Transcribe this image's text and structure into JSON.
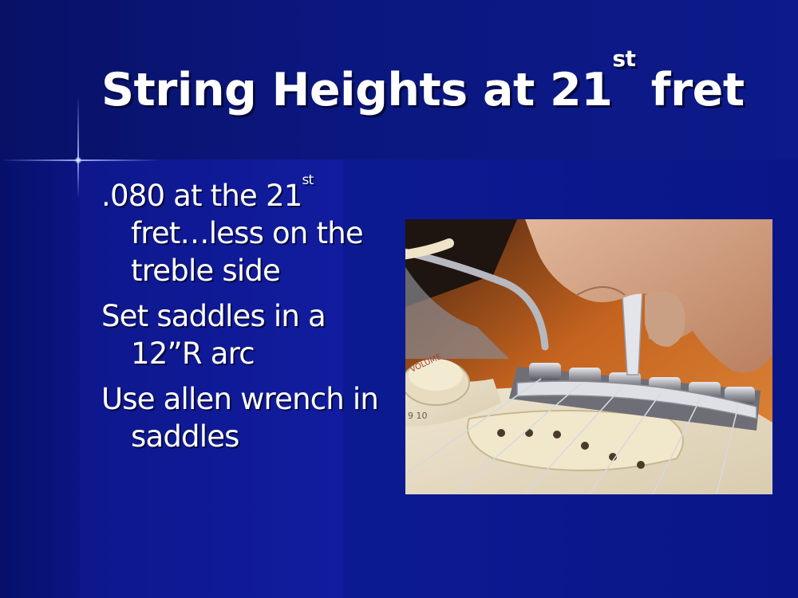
{
  "slide": {
    "title": {
      "main": "String Heights at 21",
      "sup": "st",
      "tail": " fret"
    },
    "bullets": [
      {
        "pre": ".080 at the 21",
        "sup": "st",
        "post": " fret…less on the treble side"
      },
      {
        "pre": "Set saddles in a 12”R arc",
        "sup": "",
        "post": ""
      },
      {
        "pre": "Use allen wrench in saddles",
        "sup": "",
        "post": ""
      }
    ],
    "photo": {
      "knob_label": "VOLUME",
      "knob_numbers": "9  10"
    }
  },
  "colors": {
    "background": "#0a1585",
    "text": "#ffffff",
    "guitar_body": "#d06a2a",
    "pickguard": "#f2ead6"
  }
}
